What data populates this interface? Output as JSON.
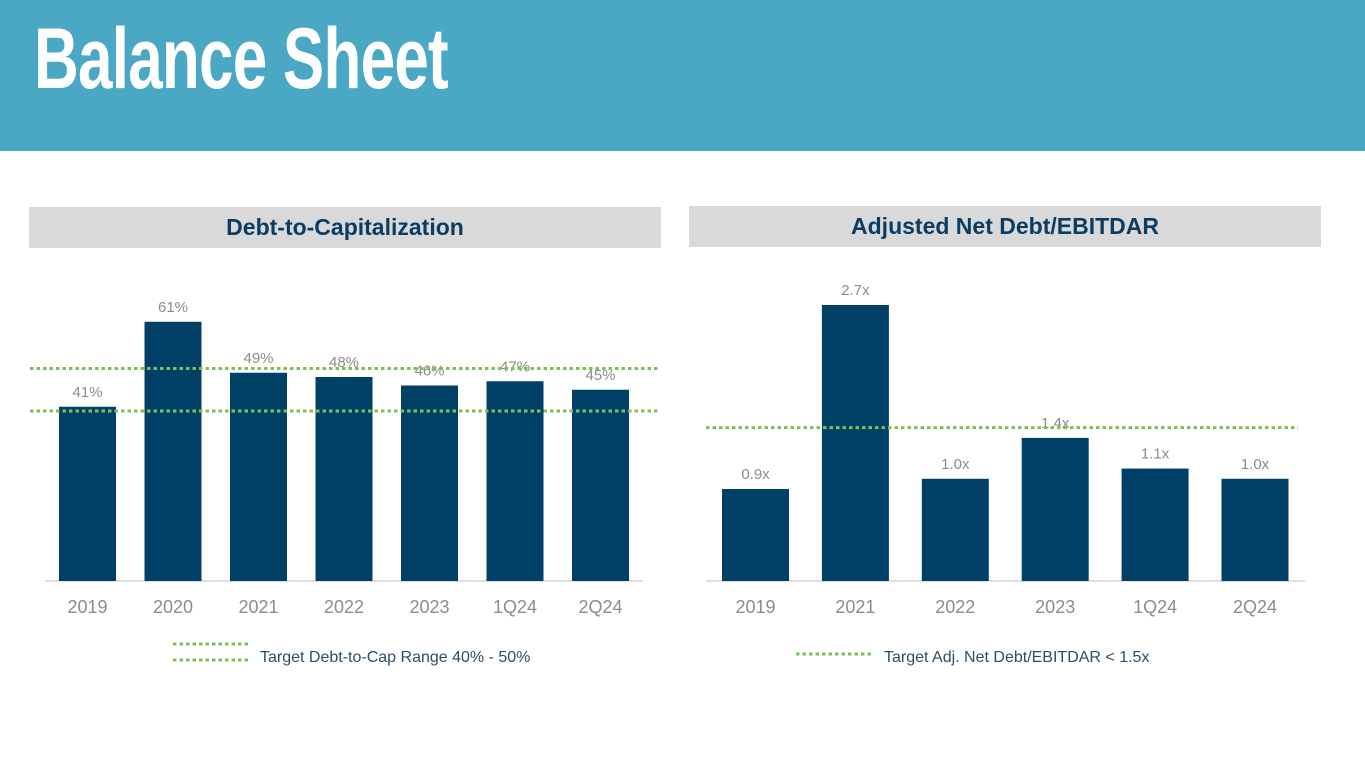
{
  "slide": {
    "title": "Balance Sheet"
  },
  "colors": {
    "header_band": "#4aa8c5",
    "bar": "#003f66",
    "target_line": "#7cc05a",
    "panel_header_bg": "#d9d9d9",
    "panel_header_text": "#0b3d63"
  },
  "chart_data": [
    {
      "type": "bar",
      "title": "Debt-to-Capitalization",
      "categories": [
        "2019",
        "2020",
        "2021",
        "2022",
        "2023",
        "1Q24",
        "2Q24"
      ],
      "values": [
        41,
        61,
        49,
        48,
        46,
        47,
        45
      ],
      "value_labels": [
        "41%",
        "61%",
        "49%",
        "48%",
        "46%",
        "47%",
        "45%"
      ],
      "unit": "%",
      "ylim": [
        0,
        70
      ],
      "xlabel": "",
      "ylabel": "",
      "grid": false,
      "target_lines": [
        40,
        50
      ],
      "legend": "Target Debt-to-Cap Range 40% - 50%"
    },
    {
      "type": "bar",
      "title": "Adjusted Net Debt/EBITDAR",
      "categories": [
        "2019",
        "2021",
        "2022",
        "2023",
        "1Q24",
        "2Q24"
      ],
      "values": [
        0.9,
        2.7,
        1.0,
        1.4,
        1.1,
        1.0
      ],
      "value_labels": [
        "0.9x",
        "2.7x",
        "1.0x",
        "1.4x",
        "1.1x",
        "1.0x"
      ],
      "unit": "x",
      "ylim": [
        0,
        3.0
      ],
      "xlabel": "",
      "ylabel": "",
      "grid": false,
      "target_lines": [
        1.5
      ],
      "legend": "Target Adj. Net Debt/EBITDAR < 1.5x"
    }
  ]
}
